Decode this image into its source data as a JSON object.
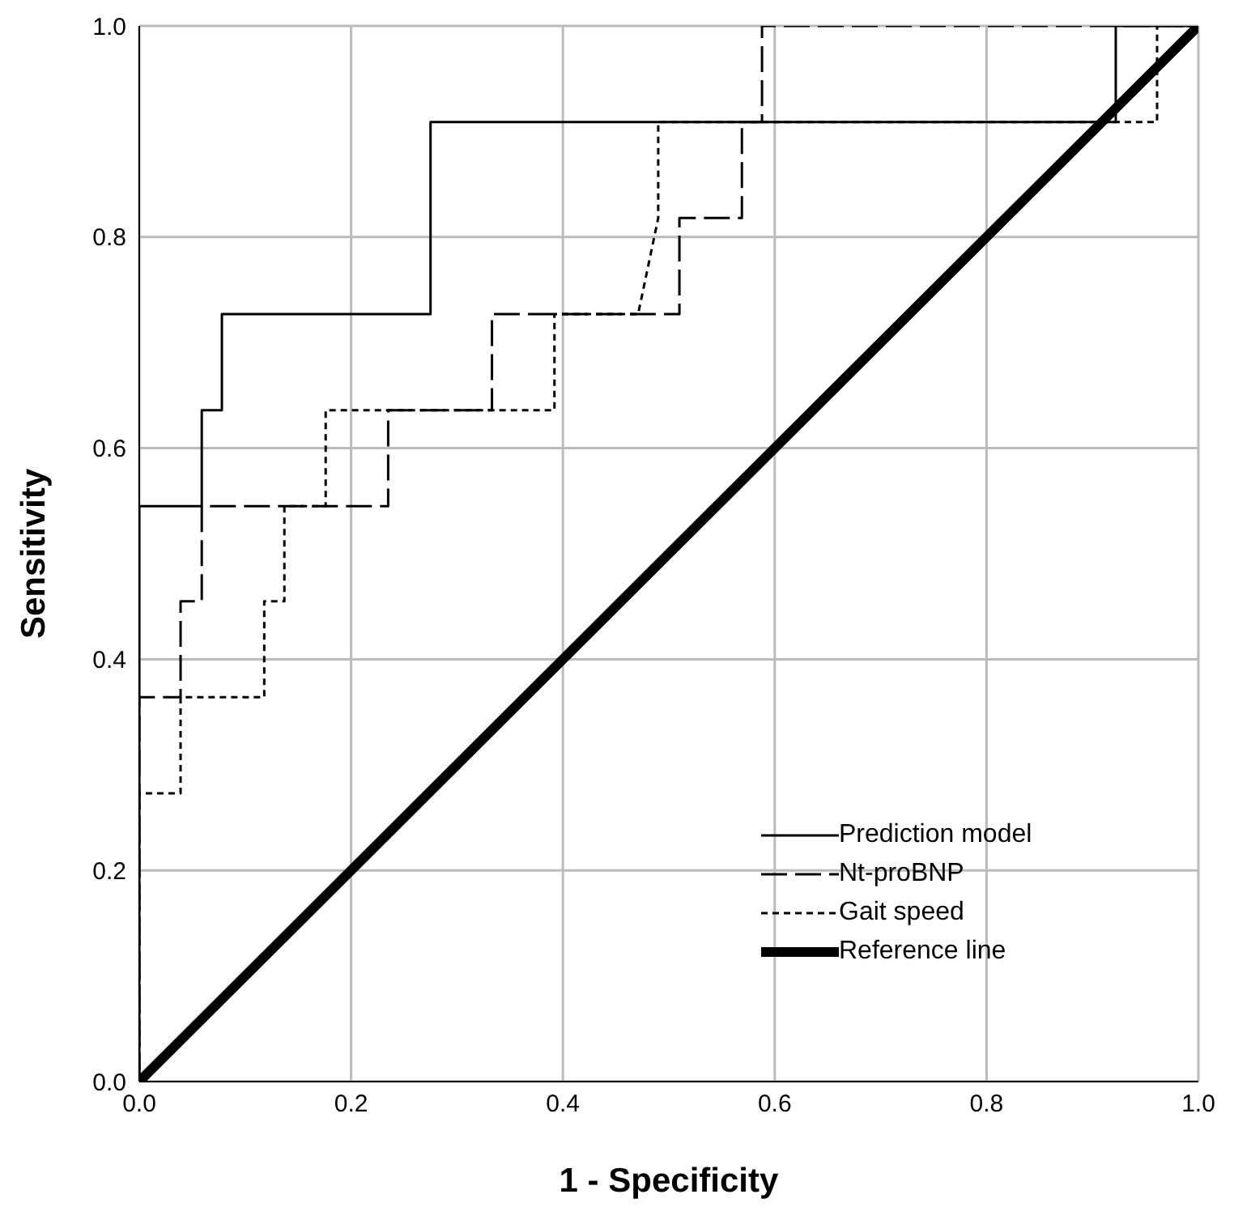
{
  "chart_data": {
    "type": "line",
    "xlabel": "1 - Specificity",
    "ylabel": "Sensitivity",
    "xlim": [
      0,
      1
    ],
    "ylim": [
      0,
      1
    ],
    "xticks": [
      {
        "value": 0,
        "label": "0.0"
      },
      {
        "value": 0.2,
        "label": "0.2"
      },
      {
        "value": 0.4,
        "label": "0.4"
      },
      {
        "value": 0.6,
        "label": "0.6"
      },
      {
        "value": 0.8,
        "label": "0.8"
      },
      {
        "value": 1,
        "label": "1.0"
      }
    ],
    "yticks": [
      {
        "value": 0,
        "label": "0.0"
      },
      {
        "value": 0.2,
        "label": "0.2"
      },
      {
        "value": 0.4,
        "label": "0.4"
      },
      {
        "value": 0.6,
        "label": "0.6"
      },
      {
        "value": 0.8,
        "label": "0.8"
      },
      {
        "value": 1,
        "label": "1.0"
      }
    ],
    "grid": true,
    "legend": "bottom right",
    "marker": "none",
    "series": [
      {
        "name": "Prediction model",
        "color": "#000000",
        "line_style": "solid",
        "x": [
          0,
          0,
          0.059,
          0.059,
          0.078,
          0.078,
          0.275,
          0.275,
          0.922,
          0.922,
          1
        ],
        "values": [
          0,
          0.545,
          0.545,
          0.636,
          0.636,
          0.727,
          0.727,
          0.909,
          0.909,
          1,
          1
        ]
      },
      {
        "name": "Nt-proBNP",
        "color": "#000000",
        "line_style": "dashed",
        "x": [
          0,
          0,
          0.039,
          0.039,
          0.059,
          0.059,
          0.235,
          0.235,
          0.333,
          0.333,
          0.51,
          0.51,
          0.569,
          0.569,
          0.588,
          0.588,
          1
        ],
        "values": [
          0,
          0.364,
          0.364,
          0.455,
          0.455,
          0.545,
          0.545,
          0.636,
          0.636,
          0.727,
          0.727,
          0.818,
          0.818,
          0.909,
          0.909,
          1,
          1
        ]
      },
      {
        "name": "Gait speed",
        "color": "#000000",
        "line_style": "dotted",
        "x": [
          0,
          0,
          0.039,
          0.039,
          0.118,
          0.118,
          0.137,
          0.137,
          0.176,
          0.176,
          0.392,
          0.392,
          0.471,
          0.49,
          0.49,
          0.961,
          0.961,
          1
        ],
        "values": [
          0,
          0.273,
          0.273,
          0.364,
          0.364,
          0.455,
          0.455,
          0.545,
          0.545,
          0.636,
          0.636,
          0.727,
          0.727,
          0.818,
          0.909,
          0.909,
          1,
          1
        ]
      },
      {
        "name": "Reference line",
        "color": "#000000",
        "line_style": "solid",
        "x": [
          0,
          1
        ],
        "values": [
          0,
          1
        ]
      }
    ]
  }
}
